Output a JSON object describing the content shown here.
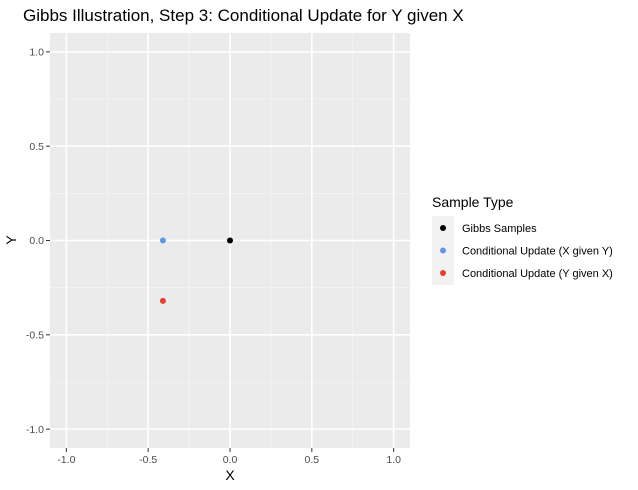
{
  "chart_data": {
    "type": "scatter",
    "title": "Gibbs Illustration, Step 3: Conditional Update for Y given X",
    "xlabel": "X",
    "ylabel": "Y",
    "xlim": [
      -1.1,
      1.1
    ],
    "ylim": [
      -1.1,
      1.1
    ],
    "x_ticks": [
      -1.0,
      -0.5,
      0.0,
      0.5,
      1.0
    ],
    "y_ticks": [
      -1.0,
      -0.5,
      0.0,
      0.5,
      1.0
    ],
    "x_tick_labels": [
      "-1.0",
      "-0.5",
      "0.0",
      "0.5",
      "1.0"
    ],
    "y_tick_labels": [
      "-1.0",
      "-0.5",
      "0.0",
      "0.5",
      "1.0"
    ],
    "grid": true,
    "legend": {
      "title": "Sample Type",
      "position": "right"
    },
    "series": [
      {
        "name": "Gibbs Samples",
        "color": "#000000",
        "points": [
          {
            "x": 0.0,
            "y": 0.0
          }
        ]
      },
      {
        "name": "Conditional Update (X given Y)",
        "color": "#6495ED",
        "points": [
          {
            "x": -0.41,
            "y": 0.0
          }
        ]
      },
      {
        "name": "Conditional Update (Y given X)",
        "color": "#E8412C",
        "points": [
          {
            "x": -0.41,
            "y": -0.32
          }
        ]
      }
    ]
  }
}
